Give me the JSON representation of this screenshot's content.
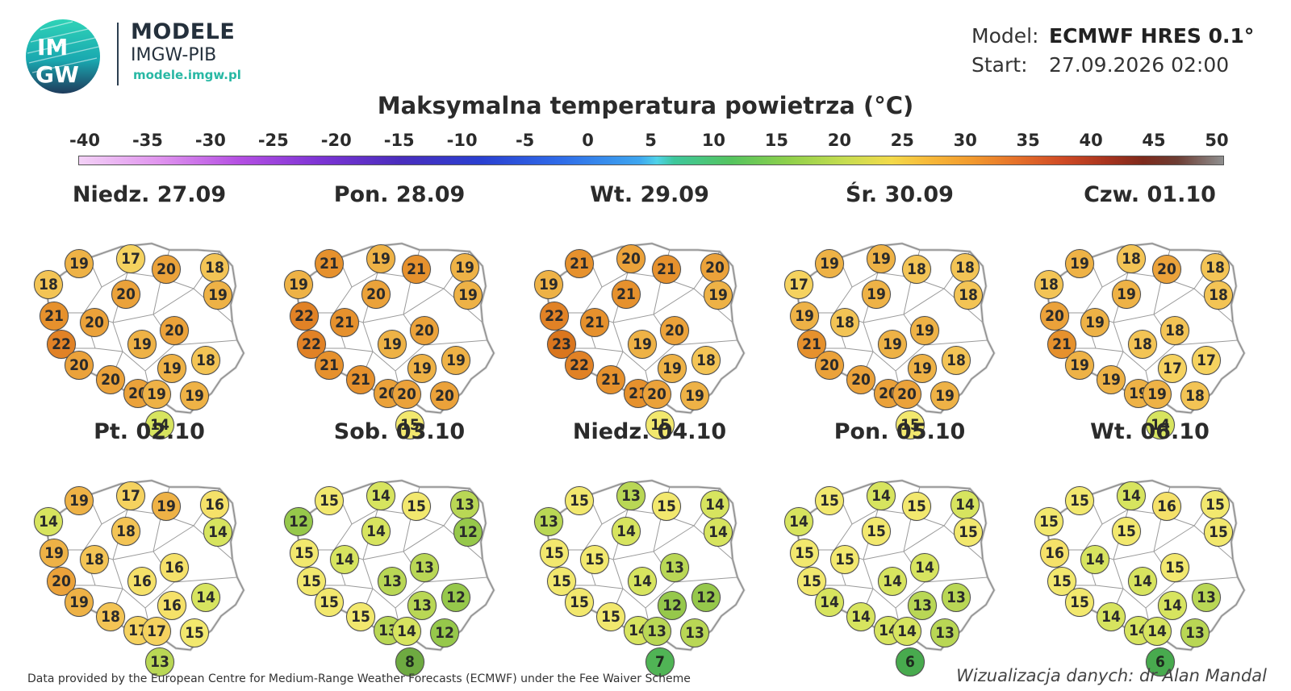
{
  "brand": {
    "logo_top": "IM",
    "logo_bottom": "GW",
    "title": "MODELE",
    "subtitle": "IMGW-PIB",
    "url": "modele.imgw.pl"
  },
  "meta": {
    "model_label": "Model:",
    "model_value": "ECMWF HRES 0.1°",
    "start_label": "Start:",
    "start_value": "27.09.2026 02:00"
  },
  "title": "Maksymalna temperatura powietrza (°C)",
  "legend": {
    "ticks": [
      "-40",
      "-35",
      "-30",
      "-25",
      "-20",
      "-15",
      "-10",
      "-5",
      "0",
      "5",
      "10",
      "15",
      "20",
      "25",
      "30",
      "35",
      "40",
      "45",
      "50"
    ]
  },
  "chart_data": {
    "type": "map",
    "unit": "°C",
    "scale_range": [
      -40,
      50
    ],
    "days": [
      {
        "label": "Niedz. 27.09",
        "values": [
          19,
          17,
          20,
          18,
          18,
          20,
          19,
          21,
          20,
          20,
          19,
          22,
          20,
          19,
          18,
          20,
          20,
          19,
          19,
          14
        ]
      },
      {
        "label": "Pon. 28.09",
        "values": [
          21,
          19,
          21,
          19,
          19,
          20,
          19,
          22,
          21,
          20,
          19,
          22,
          21,
          19,
          19,
          21,
          20,
          20,
          20,
          15
        ]
      },
      {
        "label": "Wt. 29.09",
        "values": [
          21,
          20,
          21,
          20,
          19,
          21,
          19,
          22,
          21,
          20,
          19,
          23,
          22,
          19,
          18,
          21,
          21,
          20,
          19,
          15
        ]
      },
      {
        "label": "Śr. 30.09",
        "values": [
          19,
          19,
          18,
          18,
          17,
          19,
          18,
          19,
          18,
          19,
          19,
          21,
          20,
          19,
          18,
          20,
          20,
          20,
          19,
          15
        ]
      },
      {
        "label": "Czw. 01.10",
        "values": [
          19,
          18,
          20,
          18,
          18,
          19,
          18,
          20,
          19,
          18,
          18,
          21,
          19,
          17,
          17,
          19,
          19,
          19,
          18,
          14
        ]
      },
      {
        "label": "Pt. 02.10",
        "values": [
          19,
          17,
          19,
          16,
          14,
          18,
          14,
          19,
          18,
          16,
          16,
          20,
          19,
          16,
          14,
          18,
          17,
          17,
          15,
          13
        ]
      },
      {
        "label": "Sob. 03.10",
        "values": [
          15,
          14,
          15,
          13,
          12,
          14,
          12,
          15,
          14,
          13,
          13,
          15,
          15,
          13,
          12,
          15,
          13,
          14,
          12,
          8
        ]
      },
      {
        "label": "Niedz. 04.10",
        "values": [
          15,
          13,
          15,
          14,
          13,
          14,
          14,
          15,
          15,
          13,
          14,
          15,
          15,
          12,
          12,
          15,
          14,
          13,
          13,
          7
        ]
      },
      {
        "label": "Pon. 05.10",
        "values": [
          15,
          14,
          15,
          14,
          14,
          15,
          15,
          15,
          15,
          14,
          14,
          15,
          14,
          13,
          13,
          14,
          14,
          14,
          13,
          6
        ]
      },
      {
        "label": "Wt. 06.10",
        "values": [
          15,
          14,
          16,
          15,
          15,
          15,
          15,
          16,
          14,
          15,
          14,
          15,
          15,
          14,
          13,
          14,
          14,
          14,
          13,
          6
        ]
      }
    ]
  },
  "footer": {
    "left": "Data provided by the European Centre for Medium-Range Weather Forecasts (ECMWF) under the Fee Waiver Scheme",
    "right": "Wizualizacja danych: dr Alan Mandal"
  }
}
